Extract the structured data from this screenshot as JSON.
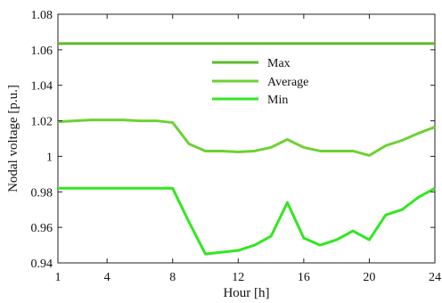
{
  "chart_data": {
    "type": "line",
    "xlabel": "Hour [h]",
    "ylabel": "Nodal voltage [p.u.]",
    "xlim": [
      1,
      24
    ],
    "ylim": [
      0.94,
      1.08
    ],
    "xticks": [
      1,
      4,
      8,
      12,
      16,
      20,
      24
    ],
    "yticks": [
      0.94,
      0.96,
      0.98,
      1,
      1.02,
      1.04,
      1.06,
      1.08
    ],
    "xtick_labels": [
      "1",
      "4",
      "8",
      "12",
      "16",
      "20",
      "24"
    ],
    "ytick_labels": [
      "0.94",
      "0.96",
      "0.98",
      "1",
      "1.02",
      "1.04",
      "1.06",
      "1.08"
    ],
    "grid": false,
    "legend_position": "center-top",
    "x": [
      1,
      2,
      3,
      4,
      5,
      6,
      7,
      8,
      9,
      10,
      11,
      12,
      13,
      14,
      15,
      16,
      17,
      18,
      19,
      20,
      21,
      22,
      23,
      24
    ],
    "series": [
      {
        "name": "Max",
        "color": "#5cb82e",
        "values": [
          1.0635,
          1.0635,
          1.0635,
          1.0635,
          1.0635,
          1.0635,
          1.0635,
          1.0635,
          1.0635,
          1.0635,
          1.0635,
          1.0635,
          1.0635,
          1.0635,
          1.0635,
          1.0635,
          1.0635,
          1.0635,
          1.0635,
          1.0635,
          1.0635,
          1.0635,
          1.0635,
          1.0635
        ]
      },
      {
        "name": "Average",
        "color": "#6ed133",
        "values": [
          1.0195,
          1.02,
          1.0205,
          1.0205,
          1.0205,
          1.02,
          1.02,
          1.019,
          1.007,
          1.003,
          1.003,
          1.0025,
          1.003,
          1.005,
          1.0095,
          1.005,
          1.003,
          1.003,
          1.003,
          1.0005,
          1.006,
          1.009,
          1.013,
          1.0165
        ]
      },
      {
        "name": "Min",
        "color": "#33e622",
        "values": [
          0.982,
          0.982,
          0.982,
          0.982,
          0.982,
          0.982,
          0.982,
          0.982,
          0.963,
          0.945,
          0.946,
          0.947,
          0.95,
          0.955,
          0.974,
          0.954,
          0.95,
          0.953,
          0.958,
          0.953,
          0.967,
          0.97,
          0.977,
          0.982
        ]
      }
    ]
  }
}
